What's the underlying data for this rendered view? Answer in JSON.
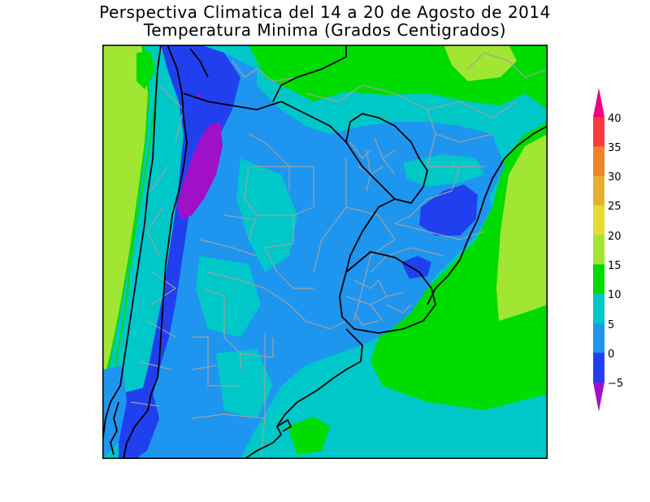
{
  "title": {
    "line1": "Perspectiva Climatica del 14 a 20 de Agosto de 2014",
    "line2": "Temperatura Minima (Grados Centigrados)"
  },
  "legend": {
    "labels": [
      "40",
      "35",
      "30",
      "25",
      "20",
      "15",
      "10",
      "5",
      "0",
      "−5"
    ],
    "colors": {
      "below_-5": "#a010c8",
      "-5_0": "#2040f0",
      "0_5": "#1e96f0",
      "5_10": "#00c8c8",
      "10_15": "#00dc00",
      "15_20": "#a0e632",
      "20_25": "#e6dc32",
      "25_30": "#e6af2d",
      "30_35": "#f08228",
      "35_40": "#fa3c3c",
      "above_40": "#f00082"
    }
  },
  "colors": {
    "boundary_country": "#000000",
    "boundary_province": "#a0a0a0",
    "frame": "#000000"
  }
}
